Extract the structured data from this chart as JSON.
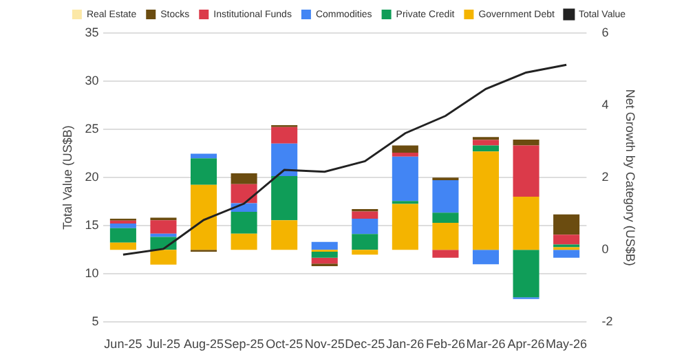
{
  "chart_data": {
    "type": "bar",
    "stacked": true,
    "categories": [
      "Jun-25",
      "Jul-25",
      "Aug-25",
      "Sep-25",
      "Oct-25",
      "Nov-25",
      "Dec-25",
      "Jan-26",
      "Feb-26",
      "Mar-26",
      "Apr-26",
      "May-26"
    ],
    "series": [
      {
        "name": "Government Debt",
        "color": "#f4b400",
        "axis": "y2",
        "values": [
          0.2,
          -0.41,
          1.8,
          0.45,
          0.82,
          -0.05,
          -0.13,
          1.27,
          0.75,
          2.72,
          1.47,
          0.07
        ]
      },
      {
        "name": "Private Credit",
        "color": "#0f9d58",
        "axis": "y2",
        "values": [
          0.4,
          0.36,
          0.73,
          0.6,
          1.22,
          -0.17,
          0.44,
          0.08,
          0.28,
          0.17,
          -1.31,
          0.08
        ]
      },
      {
        "name": "Commodities",
        "color": "#4285f4",
        "axis": "y2",
        "values": [
          0.13,
          0.09,
          0.13,
          0.24,
          0.9,
          0.22,
          0.42,
          1.23,
          0.9,
          -0.4,
          -0.05,
          -0.22
        ]
      },
      {
        "name": "Institutional Funds",
        "color": "#db3a4a",
        "axis": "y2",
        "values": [
          0.08,
          0.37,
          null,
          0.53,
          0.46,
          -0.16,
          0.2,
          0.11,
          -0.22,
          0.15,
          1.42,
          0.27
        ]
      },
      {
        "name": "Stocks",
        "color": "#6b4c10",
        "axis": "y2",
        "values": [
          0.05,
          0.07,
          -0.05,
          0.3,
          0.05,
          -0.07,
          0.07,
          0.2,
          0.07,
          0.08,
          0.16,
          0.56
        ]
      },
      {
        "name": "Real Estate",
        "color": "#fce8a6",
        "axis": "y2",
        "values": [
          null,
          null,
          null,
          null,
          null,
          null,
          null,
          null,
          null,
          null,
          null,
          null
        ]
      },
      {
        "name": "Total Value",
        "type": "line",
        "color": "#222222",
        "values": [
          12.0,
          12.6,
          15.6,
          17.3,
          20.8,
          20.6,
          21.7,
          24.6,
          26.4,
          29.2,
          30.9,
          31.7
        ]
      }
    ],
    "ylabel": "Total Value (US$B)",
    "y2label": "Net Growth by Category (US$B)",
    "ylim": [
      5,
      35
    ],
    "yticks": [
      5,
      10,
      15,
      20,
      25,
      30,
      35
    ],
    "y2lim": [
      -2,
      6
    ],
    "y2ticks": [
      -2,
      0,
      2,
      4,
      6
    ],
    "grid": "y",
    "legend": "top",
    "marker": "none"
  }
}
